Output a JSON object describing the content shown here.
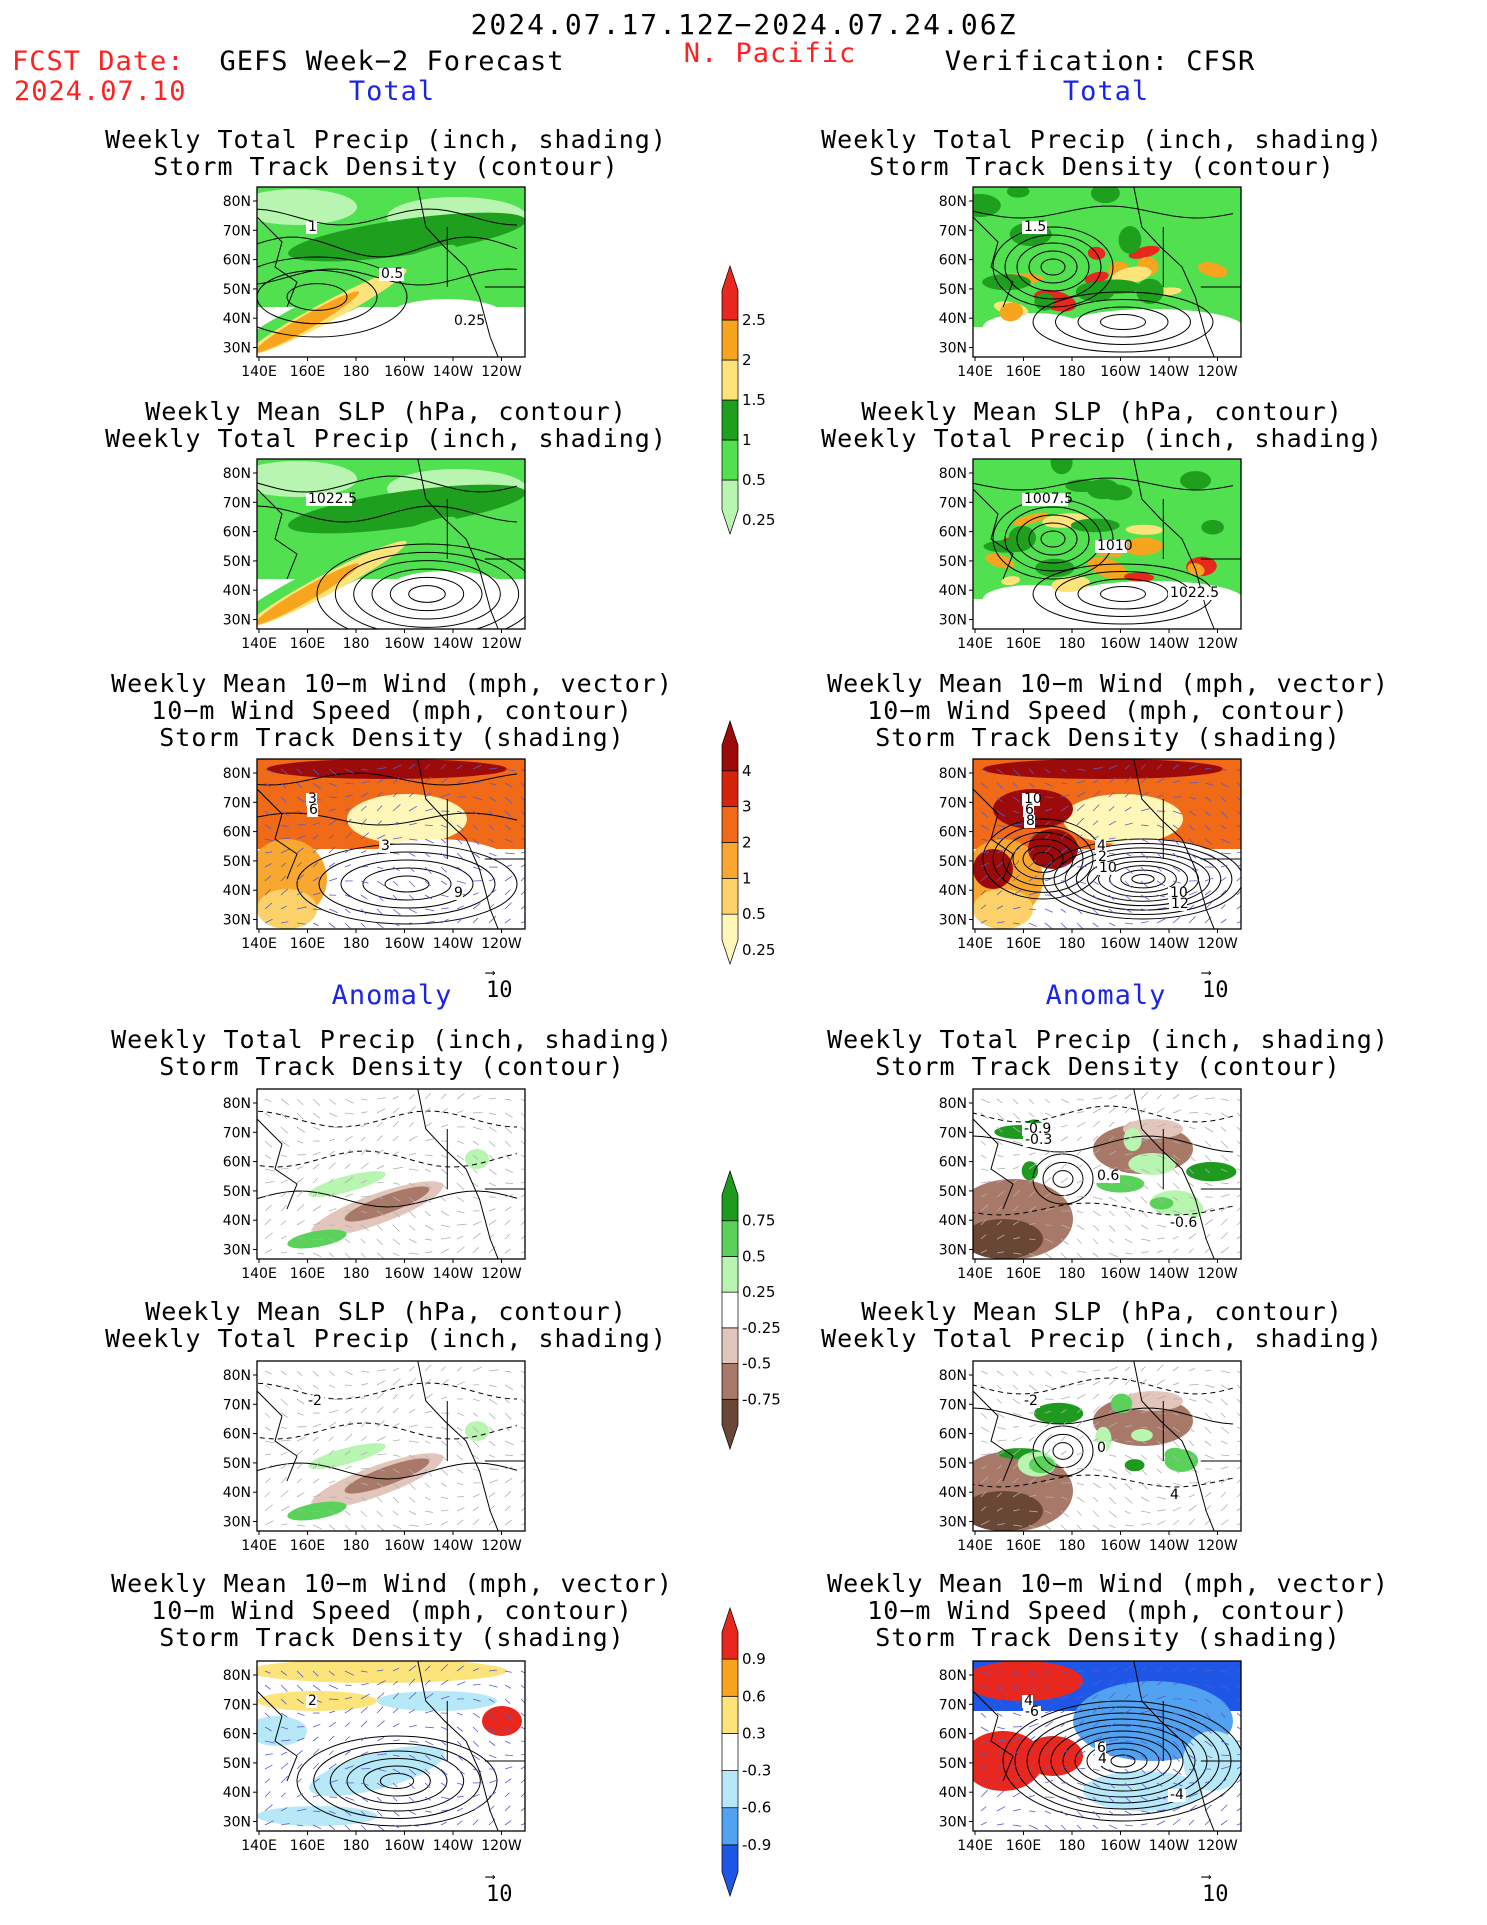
{
  "header": {
    "date_range": "2024.07.17.12Z−2024.07.24.06Z",
    "fcst_label": "FCST Date:",
    "fcst_date": "2024.07.10",
    "left_title": "GEFS Week−2 Forecast",
    "region": "N. Pacific",
    "right_title": "Verification: CFSR"
  },
  "sections": {
    "total": "Total",
    "anomaly": "Anomaly"
  },
  "panel_titles": {
    "precip_storm": [
      "Weekly Total Precip (inch, shading)",
      "Storm Track Density (contour)"
    ],
    "slp_precip": [
      "Weekly Mean SLP (hPa, contour)",
      "Weekly Total Precip (inch, shading)"
    ],
    "wind_storm": [
      "Weekly Mean 10−m Wind (mph, vector)",
      "10−m Wind Speed (mph, contour)",
      "Storm Track Density (shading)"
    ]
  },
  "axes": {
    "lat_ticks": [
      "80N",
      "70N",
      "60N",
      "50N",
      "40N",
      "30N"
    ],
    "lon_ticks": [
      "140E",
      "160E",
      "180",
      "160W",
      "140W",
      "120W"
    ]
  },
  "vector_ref": "10",
  "contour_labels": {
    "fc_total_precip": [
      "1",
      "0.5",
      "0.25"
    ],
    "vr_total_precip": [
      "1.5"
    ],
    "fc_total_slp": [
      "1022.5"
    ],
    "vr_total_slp": [
      "1007.5",
      "1010",
      "1022.5"
    ],
    "fc_total_wind": [
      "3",
      "3",
      "9",
      "6"
    ],
    "vr_total_wind": [
      "10",
      "4",
      "10",
      "6",
      "2",
      "12",
      "8",
      "10"
    ],
    "vr_anom_precip": [
      "-0.9",
      "0.6",
      "-0.6",
      "-0.3"
    ],
    "fc_anom_slp": [
      "-2"
    ],
    "vr_anom_slp": [
      "-2",
      "0",
      "4"
    ],
    "fc_anom_wind": [
      "2"
    ],
    "vr_anom_wind": [
      "4",
      "6",
      "-4",
      "-6",
      "4"
    ]
  },
  "chart_data": [
    {
      "type": "heatmap",
      "name_key": "colorbar_precip_total",
      "levels": [
        "0.25",
        "0.5",
        "1",
        "1.5",
        "2",
        "2.5"
      ],
      "colors": [
        "#b8f5b0",
        "#50e050",
        "#1ea01e",
        "#fce37a",
        "#f7a51e",
        "#e8281e"
      ]
    },
    {
      "type": "heatmap",
      "name_key": "colorbar_storm_total",
      "levels": [
        "0.25",
        "0.5",
        "1",
        "2",
        "3",
        "4"
      ],
      "colors": [
        "#fff7b8",
        "#fcd16a",
        "#f8a830",
        "#f06a18",
        "#d4240e",
        "#9c0a0a"
      ]
    },
    {
      "type": "heatmap",
      "name_key": "colorbar_precip_anom",
      "levels": [
        "-0.75",
        "-0.5",
        "-0.25",
        "0.25",
        "0.5",
        "0.75"
      ],
      "colors": [
        "#6a4634",
        "#a87868",
        "#e2c6bc",
        "#ffffff",
        "#b8f5b0",
        "#5ad25a",
        "#1e9a1e"
      ]
    },
    {
      "type": "heatmap",
      "name_key": "colorbar_storm_anom",
      "levels": [
        "-0.9",
        "-0.6",
        "-0.3",
        "0.3",
        "0.6",
        "0.9"
      ],
      "colors": [
        "#1e56e6",
        "#52a2f2",
        "#b6e8f8",
        "#ffffff",
        "#fce37a",
        "#f7a51e",
        "#e8281e"
      ]
    }
  ]
}
